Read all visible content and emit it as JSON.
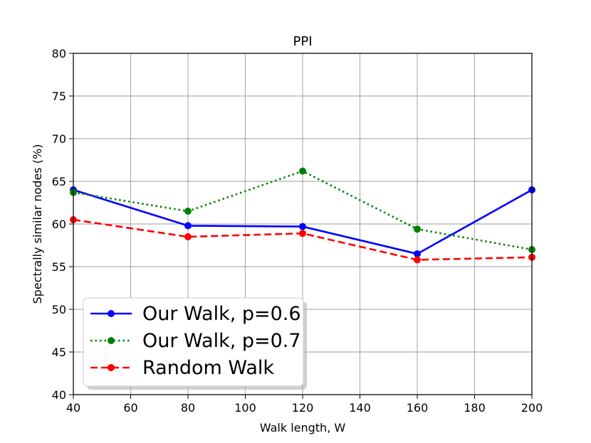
{
  "chart_data": {
    "type": "line",
    "title": "PPI",
    "xlabel": "Walk length, W",
    "ylabel": "Spectrally similar nodes (%)",
    "xlim": [
      40,
      200
    ],
    "ylim": [
      40,
      80
    ],
    "xticks": [
      40,
      60,
      80,
      100,
      120,
      140,
      160,
      180,
      200
    ],
    "yticks": [
      40,
      45,
      50,
      55,
      60,
      65,
      70,
      75,
      80
    ],
    "grid": true,
    "legend_position": "lower-left",
    "x": [
      40,
      80,
      120,
      160,
      200
    ],
    "series": [
      {
        "name": "Our Walk, p=0.6",
        "values": [
          64.0,
          59.8,
          59.7,
          56.5,
          64.0
        ],
        "color": "#0000ff",
        "style": "solid"
      },
      {
        "name": "Our Walk, p=0.7",
        "values": [
          63.7,
          61.5,
          66.2,
          59.4,
          57.0
        ],
        "color": "#008000",
        "style": "dotted"
      },
      {
        "name": "Random Walk",
        "values": [
          60.5,
          58.5,
          58.9,
          55.8,
          56.1
        ],
        "color": "#ff0000",
        "style": "dashed"
      }
    ]
  }
}
